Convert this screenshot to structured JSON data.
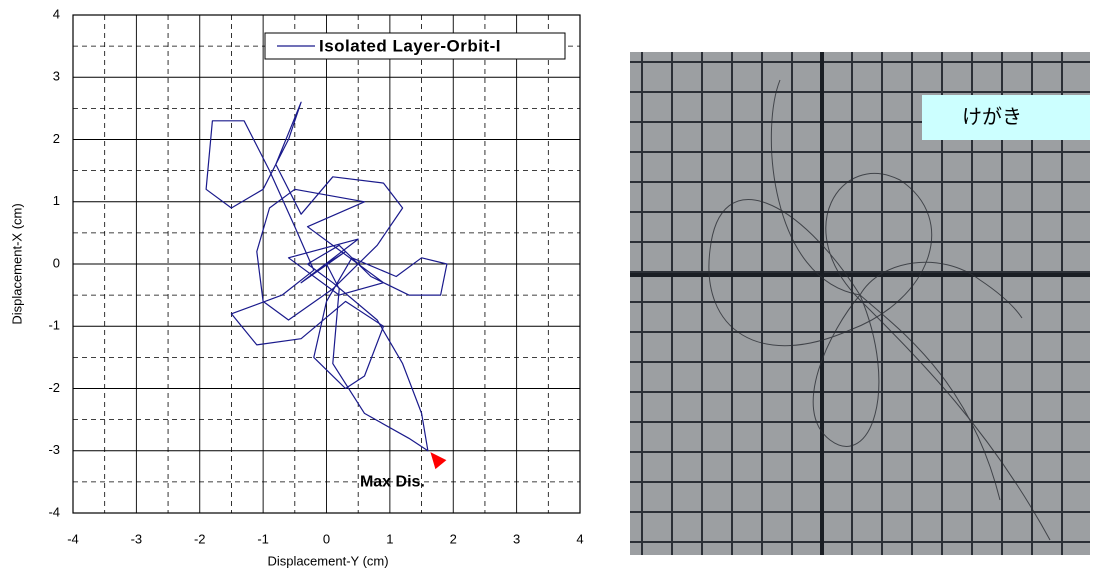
{
  "chart_data": {
    "type": "line",
    "x_label": "Displacement-Y (cm)",
    "y_label": "Displacement-X (cm)",
    "xlim": [
      -4,
      4
    ],
    "ylim": [
      -4,
      4
    ],
    "xticks": [
      -4,
      -3,
      -2,
      -1,
      0,
      1,
      2,
      3,
      4
    ],
    "yticks": [
      -4,
      -3,
      -2,
      -1,
      0,
      1,
      2,
      3,
      4
    ],
    "minor_xticks": [
      -3.5,
      -2.5,
      -1.5,
      -0.5,
      0.5,
      1.5,
      2.5,
      3.5
    ],
    "minor_yticks": [
      -3.5,
      -2.5,
      -1.5,
      -0.5,
      0.5,
      1.5,
      2.5,
      3.5
    ],
    "grid": true,
    "legend": "upper right",
    "x": [
      0,
      0.3,
      -0.4,
      0.5,
      -0.6,
      0.2,
      0.9,
      -0.3,
      0.6,
      -0.5,
      -0.9,
      -1.1,
      -1.0,
      -0.6,
      0.1,
      0.8,
      1.2,
      0.9,
      0.1,
      -0.4,
      -0.8,
      -0.4,
      -0.6,
      -1.0,
      -1.5,
      -1.9,
      -1.8,
      -1.3,
      -0.9,
      -0.5,
      -0.2,
      -0.7,
      -1.5,
      -1.1,
      -0.4,
      0.3,
      0.9,
      0.6,
      0.3,
      -0.2,
      0.0,
      0.4,
      1.1,
      1.5,
      1.9,
      1.8,
      1.3,
      0.7,
      0.2,
      -0.3,
      0.1,
      0.8,
      1.2,
      1.5,
      1.6,
      1.3,
      0.6,
      0.1,
      0.2,
      0
    ],
    "series": [
      {
        "name": "Isolated Layer-Orbit-I",
        "color": "#1a1a8c",
        "values": [
          0,
          0.2,
          -0.3,
          0.4,
          0.1,
          -0.5,
          -0.3,
          0.6,
          1.0,
          1.2,
          0.9,
          0.2,
          -0.6,
          -0.9,
          -0.4,
          0.3,
          0.9,
          1.3,
          1.4,
          0.8,
          1.6,
          2.6,
          2.0,
          1.2,
          0.9,
          1.2,
          2.3,
          2.3,
          1.5,
          0.6,
          -0.1,
          -0.5,
          -0.8,
          -1.3,
          -1.2,
          -0.6,
          -1.0,
          -1.8,
          -2.0,
          -1.5,
          -0.6,
          0.1,
          -0.2,
          0.1,
          0.0,
          -0.5,
          -0.5,
          -0.2,
          0.3,
          0.0,
          -0.3,
          -0.9,
          -1.6,
          -2.4,
          -3.0,
          -2.8,
          -2.4,
          -1.6,
          -0.4,
          0
        ]
      }
    ],
    "annotations": [
      {
        "text": "Max Dis.",
        "x": 1.75,
        "y": -3.15,
        "color": "#ff0000"
      }
    ]
  },
  "photo": {
    "label": "けがき"
  }
}
